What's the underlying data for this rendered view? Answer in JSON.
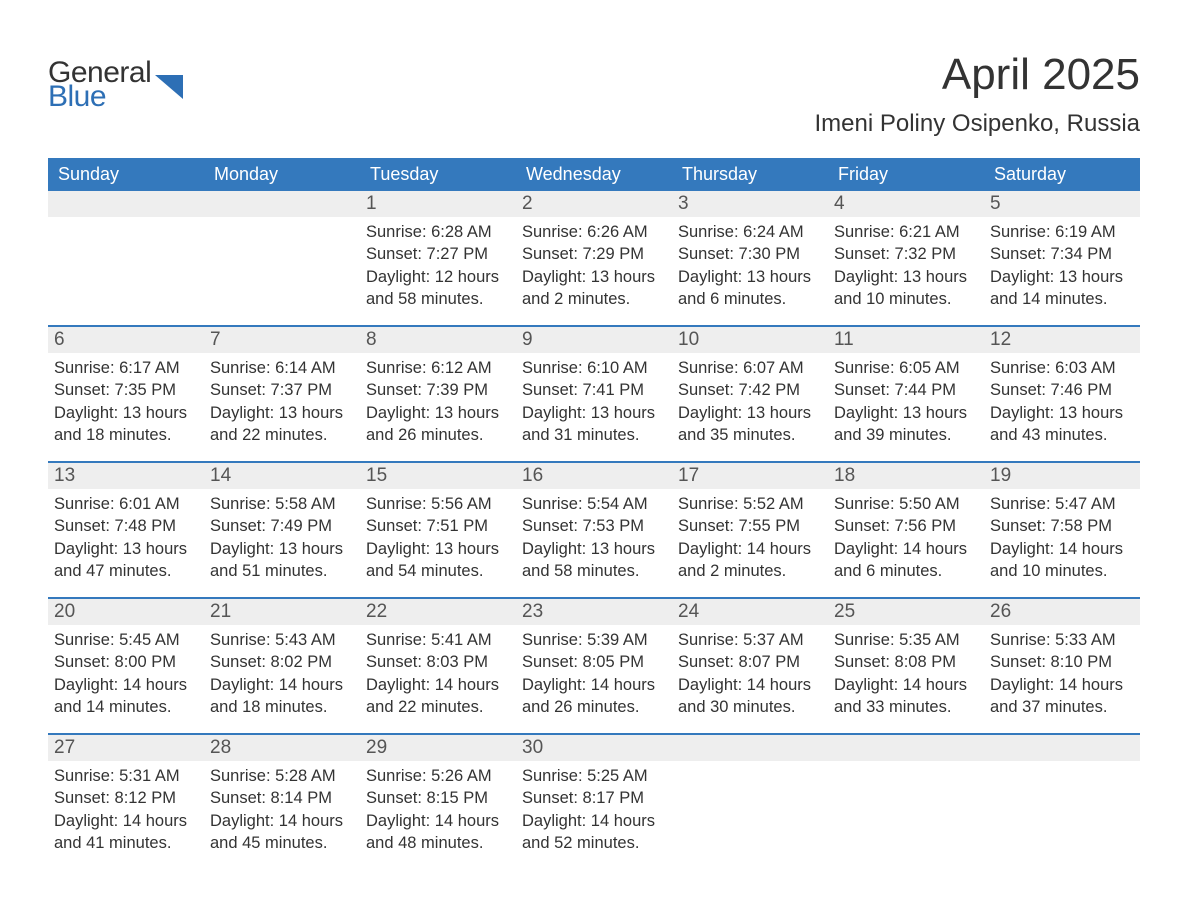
{
  "logo": {
    "line1": "General",
    "line2": "Blue"
  },
  "title": "April 2025",
  "location": "Imeni Poliny Osipenko, Russia",
  "colors": {
    "header_bg": "#3479bd",
    "header_text": "#ffffff",
    "daynum_bg": "#eeeeee",
    "daynum_text": "#555555",
    "week_border": "#3479bd",
    "body_text": "#333333",
    "logo_blue": "#2d6fb5",
    "page_bg": "#ffffff"
  },
  "dow": [
    "Sunday",
    "Monday",
    "Tuesday",
    "Wednesday",
    "Thursday",
    "Friday",
    "Saturday"
  ],
  "weeks": [
    {
      "days": [
        {
          "num": "",
          "sunrise": "",
          "sunset": "",
          "daylight": ""
        },
        {
          "num": "",
          "sunrise": "",
          "sunset": "",
          "daylight": ""
        },
        {
          "num": "1",
          "sunrise": "Sunrise: 6:28 AM",
          "sunset": "Sunset: 7:27 PM",
          "daylight": "Daylight: 12 hours and 58 minutes."
        },
        {
          "num": "2",
          "sunrise": "Sunrise: 6:26 AM",
          "sunset": "Sunset: 7:29 PM",
          "daylight": "Daylight: 13 hours and 2 minutes."
        },
        {
          "num": "3",
          "sunrise": "Sunrise: 6:24 AM",
          "sunset": "Sunset: 7:30 PM",
          "daylight": "Daylight: 13 hours and 6 minutes."
        },
        {
          "num": "4",
          "sunrise": "Sunrise: 6:21 AM",
          "sunset": "Sunset: 7:32 PM",
          "daylight": "Daylight: 13 hours and 10 minutes."
        },
        {
          "num": "5",
          "sunrise": "Sunrise: 6:19 AM",
          "sunset": "Sunset: 7:34 PM",
          "daylight": "Daylight: 13 hours and 14 minutes."
        }
      ]
    },
    {
      "days": [
        {
          "num": "6",
          "sunrise": "Sunrise: 6:17 AM",
          "sunset": "Sunset: 7:35 PM",
          "daylight": "Daylight: 13 hours and 18 minutes."
        },
        {
          "num": "7",
          "sunrise": "Sunrise: 6:14 AM",
          "sunset": "Sunset: 7:37 PM",
          "daylight": "Daylight: 13 hours and 22 minutes."
        },
        {
          "num": "8",
          "sunrise": "Sunrise: 6:12 AM",
          "sunset": "Sunset: 7:39 PM",
          "daylight": "Daylight: 13 hours and 26 minutes."
        },
        {
          "num": "9",
          "sunrise": "Sunrise: 6:10 AM",
          "sunset": "Sunset: 7:41 PM",
          "daylight": "Daylight: 13 hours and 31 minutes."
        },
        {
          "num": "10",
          "sunrise": "Sunrise: 6:07 AM",
          "sunset": "Sunset: 7:42 PM",
          "daylight": "Daylight: 13 hours and 35 minutes."
        },
        {
          "num": "11",
          "sunrise": "Sunrise: 6:05 AM",
          "sunset": "Sunset: 7:44 PM",
          "daylight": "Daylight: 13 hours and 39 minutes."
        },
        {
          "num": "12",
          "sunrise": "Sunrise: 6:03 AM",
          "sunset": "Sunset: 7:46 PM",
          "daylight": "Daylight: 13 hours and 43 minutes."
        }
      ]
    },
    {
      "days": [
        {
          "num": "13",
          "sunrise": "Sunrise: 6:01 AM",
          "sunset": "Sunset: 7:48 PM",
          "daylight": "Daylight: 13 hours and 47 minutes."
        },
        {
          "num": "14",
          "sunrise": "Sunrise: 5:58 AM",
          "sunset": "Sunset: 7:49 PM",
          "daylight": "Daylight: 13 hours and 51 minutes."
        },
        {
          "num": "15",
          "sunrise": "Sunrise: 5:56 AM",
          "sunset": "Sunset: 7:51 PM",
          "daylight": "Daylight: 13 hours and 54 minutes."
        },
        {
          "num": "16",
          "sunrise": "Sunrise: 5:54 AM",
          "sunset": "Sunset: 7:53 PM",
          "daylight": "Daylight: 13 hours and 58 minutes."
        },
        {
          "num": "17",
          "sunrise": "Sunrise: 5:52 AM",
          "sunset": "Sunset: 7:55 PM",
          "daylight": "Daylight: 14 hours and 2 minutes."
        },
        {
          "num": "18",
          "sunrise": "Sunrise: 5:50 AM",
          "sunset": "Sunset: 7:56 PM",
          "daylight": "Daylight: 14 hours and 6 minutes."
        },
        {
          "num": "19",
          "sunrise": "Sunrise: 5:47 AM",
          "sunset": "Sunset: 7:58 PM",
          "daylight": "Daylight: 14 hours and 10 minutes."
        }
      ]
    },
    {
      "days": [
        {
          "num": "20",
          "sunrise": "Sunrise: 5:45 AM",
          "sunset": "Sunset: 8:00 PM",
          "daylight": "Daylight: 14 hours and 14 minutes."
        },
        {
          "num": "21",
          "sunrise": "Sunrise: 5:43 AM",
          "sunset": "Sunset: 8:02 PM",
          "daylight": "Daylight: 14 hours and 18 minutes."
        },
        {
          "num": "22",
          "sunrise": "Sunrise: 5:41 AM",
          "sunset": "Sunset: 8:03 PM",
          "daylight": "Daylight: 14 hours and 22 minutes."
        },
        {
          "num": "23",
          "sunrise": "Sunrise: 5:39 AM",
          "sunset": "Sunset: 8:05 PM",
          "daylight": "Daylight: 14 hours and 26 minutes."
        },
        {
          "num": "24",
          "sunrise": "Sunrise: 5:37 AM",
          "sunset": "Sunset: 8:07 PM",
          "daylight": "Daylight: 14 hours and 30 minutes."
        },
        {
          "num": "25",
          "sunrise": "Sunrise: 5:35 AM",
          "sunset": "Sunset: 8:08 PM",
          "daylight": "Daylight: 14 hours and 33 minutes."
        },
        {
          "num": "26",
          "sunrise": "Sunrise: 5:33 AM",
          "sunset": "Sunset: 8:10 PM",
          "daylight": "Daylight: 14 hours and 37 minutes."
        }
      ]
    },
    {
      "days": [
        {
          "num": "27",
          "sunrise": "Sunrise: 5:31 AM",
          "sunset": "Sunset: 8:12 PM",
          "daylight": "Daylight: 14 hours and 41 minutes."
        },
        {
          "num": "28",
          "sunrise": "Sunrise: 5:28 AM",
          "sunset": "Sunset: 8:14 PM",
          "daylight": "Daylight: 14 hours and 45 minutes."
        },
        {
          "num": "29",
          "sunrise": "Sunrise: 5:26 AM",
          "sunset": "Sunset: 8:15 PM",
          "daylight": "Daylight: 14 hours and 48 minutes."
        },
        {
          "num": "30",
          "sunrise": "Sunrise: 5:25 AM",
          "sunset": "Sunset: 8:17 PM",
          "daylight": "Daylight: 14 hours and 52 minutes."
        },
        {
          "num": "",
          "sunrise": "",
          "sunset": "",
          "daylight": ""
        },
        {
          "num": "",
          "sunrise": "",
          "sunset": "",
          "daylight": ""
        },
        {
          "num": "",
          "sunrise": "",
          "sunset": "",
          "daylight": ""
        }
      ]
    }
  ]
}
